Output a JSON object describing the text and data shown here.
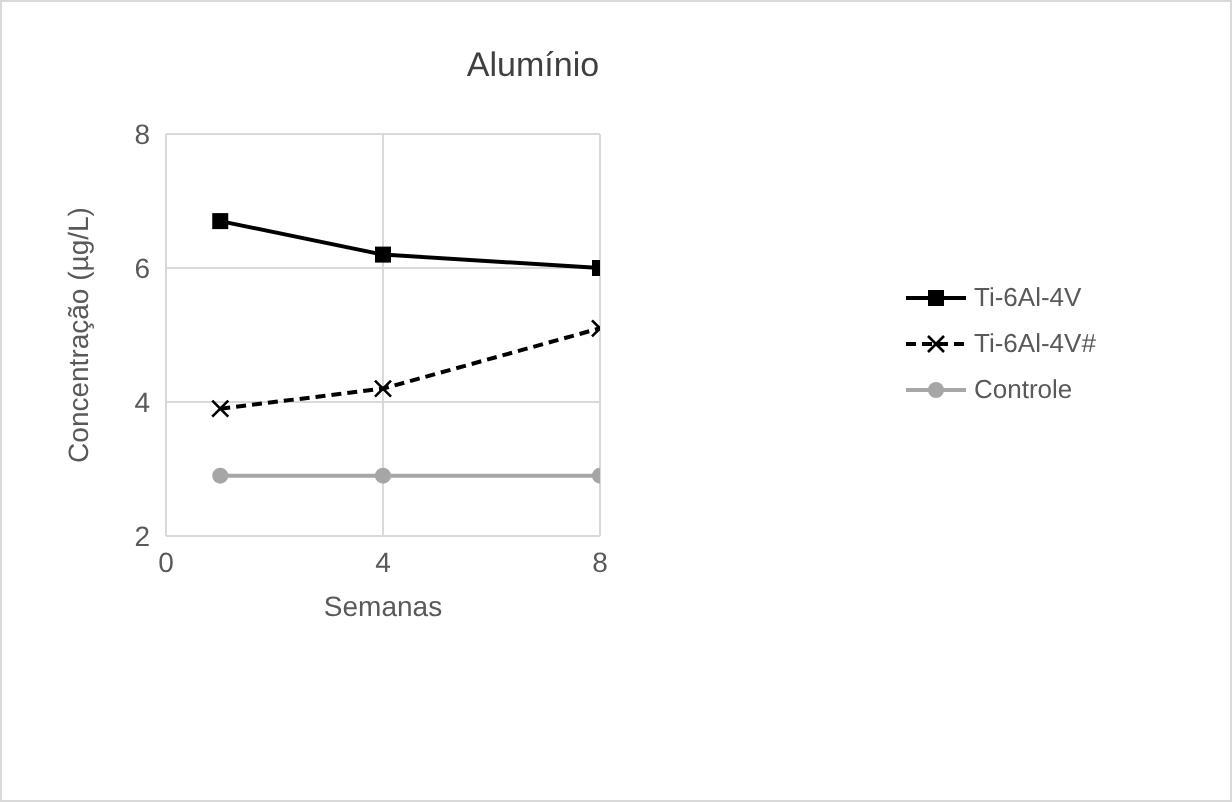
{
  "chart_data": {
    "type": "line",
    "title": "Alumínio",
    "xlabel": "Semanas",
    "ylabel": "Concentração (µg/L)",
    "x": [
      1,
      4,
      8
    ],
    "series": [
      {
        "name": "Ti-6Al-4V",
        "color": "#000000",
        "values": [
          6.7,
          6.2,
          6.0
        ],
        "marker": "square",
        "line_style": "solid"
      },
      {
        "name": "Ti-6Al-4V#",
        "color": "#000000",
        "values": [
          3.9,
          4.2,
          5.1
        ],
        "marker": "cross",
        "line_style": "dashed"
      },
      {
        "name": "Controle",
        "color": "#a6a6a6",
        "values": [
          2.9,
          2.9,
          2.9
        ],
        "marker": "circle",
        "line_style": "solid"
      }
    ],
    "xlim": [
      0,
      8
    ],
    "xticks": [
      0,
      4,
      8
    ],
    "ylim": [
      2,
      8
    ],
    "yticks": [
      2,
      4,
      6,
      8
    ],
    "grid": true,
    "legend": "right"
  }
}
